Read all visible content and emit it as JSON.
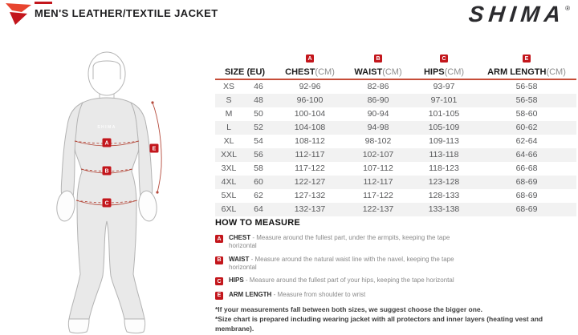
{
  "header": {
    "title": "MEN'S LEATHER/TEXTILE JACKET",
    "brand": "SHIMA",
    "registered": "®"
  },
  "figure": {
    "chest_logo": "SHIMA",
    "markers": {
      "chest": "A",
      "waist": "B",
      "hips": "C",
      "arm": "E"
    }
  },
  "table": {
    "size_header": "SIZE (EU)",
    "columns": [
      {
        "badge": "A",
        "label": "CHEST",
        "unit": "(CM)"
      },
      {
        "badge": "B",
        "label": "WAIST",
        "unit": "(CM)"
      },
      {
        "badge": "C",
        "label": "HIPS",
        "unit": "(CM)"
      },
      {
        "badge": "E",
        "label": "ARM LENGTH",
        "unit": "(CM)"
      }
    ],
    "rows": [
      {
        "size": "XS",
        "eu": "46",
        "chest": "92-96",
        "waist": "82-86",
        "hips": "93-97",
        "arm": "56-58"
      },
      {
        "size": "S",
        "eu": "48",
        "chest": "96-100",
        "waist": "86-90",
        "hips": "97-101",
        "arm": "56-58"
      },
      {
        "size": "M",
        "eu": "50",
        "chest": "100-104",
        "waist": "90-94",
        "hips": "101-105",
        "arm": "58-60"
      },
      {
        "size": "L",
        "eu": "52",
        "chest": "104-108",
        "waist": "94-98",
        "hips": "105-109",
        "arm": "60-62"
      },
      {
        "size": "XL",
        "eu": "54",
        "chest": "108-112",
        "waist": "98-102",
        "hips": "109-113",
        "arm": "62-64"
      },
      {
        "size": "XXL",
        "eu": "56",
        "chest": "112-117",
        "waist": "102-107",
        "hips": "113-118",
        "arm": "64-66"
      },
      {
        "size": "3XL",
        "eu": "58",
        "chest": "117-122",
        "waist": "107-112",
        "hips": "118-123",
        "arm": "66-68"
      },
      {
        "size": "4XL",
        "eu": "60",
        "chest": "122-127",
        "waist": "112-117",
        "hips": "123-128",
        "arm": "68-69"
      },
      {
        "size": "5XL",
        "eu": "62",
        "chest": "127-132",
        "waist": "117-122",
        "hips": "128-133",
        "arm": "68-69"
      },
      {
        "size": "6XL",
        "eu": "64",
        "chest": "132-137",
        "waist": "122-137",
        "hips": "133-138",
        "arm": "68-69"
      }
    ]
  },
  "how_to_measure": {
    "heading": "HOW TO MEASURE",
    "items": [
      {
        "badge": "A",
        "label": "CHEST",
        "desc": "- Measure around the fullest part, under the armpits, keeping the tape horizontal"
      },
      {
        "badge": "B",
        "label": "WAIST",
        "desc": "- Measure around the natural waist line with the navel, keeping the tape horizontal"
      },
      {
        "badge": "C",
        "label": "HIPS",
        "desc": "- Measure around the fullest part of your hips, keeping the tape horizontal"
      },
      {
        "badge": "E",
        "label": "ARM LENGTH",
        "desc": "- Measure from shoulder to wrist"
      }
    ],
    "notes": [
      "*If your measurements fall between both sizes, we suggest choose the bigger one.",
      "*Size chart is prepared including wearing jacket with all protectors and inner layers (heating vest and membrane)."
    ]
  },
  "colors": {
    "badge_red": "#c3161c",
    "header_line_red": "#c64d38",
    "measure_line_red": "#b54a3c",
    "row_stripe": "#f2f2f2",
    "body_gray": "#e9e9e9"
  }
}
